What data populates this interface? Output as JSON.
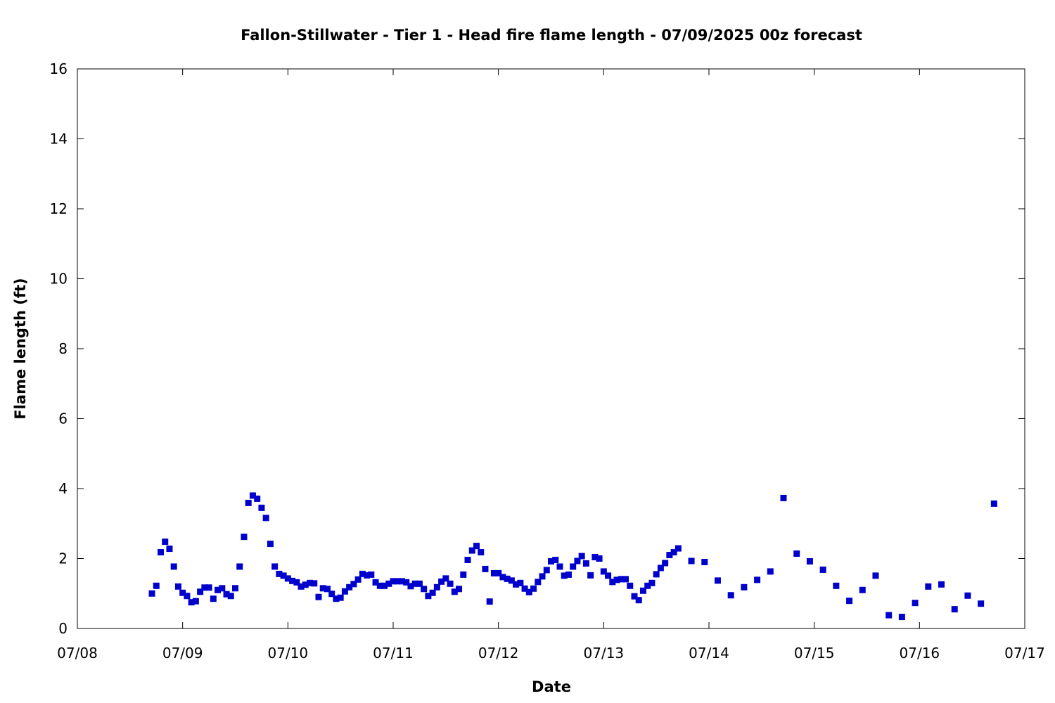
{
  "chart_data": {
    "type": "scatter",
    "title": "Fallon-Stillwater - Tier 1 - Head fire flame length - 07/09/2025 00z forecast",
    "xlabel": "Date",
    "ylabel": "Flame length (ft)",
    "x_type": "date",
    "x_range": [
      "2025-07-08T00:00",
      "2025-07-17T00:00"
    ],
    "ylim": [
      0,
      16
    ],
    "x_ticks": [
      {
        "label": "07/08",
        "value": "2025-07-08T00:00"
      },
      {
        "label": "07/09",
        "value": "2025-07-09T00:00"
      },
      {
        "label": "07/10",
        "value": "2025-07-10T00:00"
      },
      {
        "label": "07/11",
        "value": "2025-07-11T00:00"
      },
      {
        "label": "07/12",
        "value": "2025-07-12T00:00"
      },
      {
        "label": "07/13",
        "value": "2025-07-13T00:00"
      },
      {
        "label": "07/14",
        "value": "2025-07-14T00:00"
      },
      {
        "label": "07/15",
        "value": "2025-07-15T00:00"
      },
      {
        "label": "07/16",
        "value": "2025-07-16T00:00"
      },
      {
        "label": "07/17",
        "value": "2025-07-17T00:00"
      }
    ],
    "y_ticks": [
      0,
      2,
      4,
      6,
      8,
      10,
      12,
      14,
      16
    ],
    "grid": false,
    "legend": "none",
    "marker_color": "#0000cc",
    "marker": "square",
    "series": [
      {
        "x": [
          "2025-07-08T17:00",
          "2025-07-08T18:00",
          "2025-07-08T19:00",
          "2025-07-08T20:00",
          "2025-07-08T21:00",
          "2025-07-08T22:00",
          "2025-07-08T23:00",
          "2025-07-09T00:00",
          "2025-07-09T01:00",
          "2025-07-09T02:00",
          "2025-07-09T03:00",
          "2025-07-09T04:00",
          "2025-07-09T05:00",
          "2025-07-09T06:00",
          "2025-07-09T07:00",
          "2025-07-09T08:00",
          "2025-07-09T09:00",
          "2025-07-09T10:00",
          "2025-07-09T11:00",
          "2025-07-09T12:00",
          "2025-07-09T13:00",
          "2025-07-09T14:00",
          "2025-07-09T15:00",
          "2025-07-09T16:00",
          "2025-07-09T17:00",
          "2025-07-09T18:00",
          "2025-07-09T19:00",
          "2025-07-09T20:00",
          "2025-07-09T21:00",
          "2025-07-09T22:00",
          "2025-07-09T23:00",
          "2025-07-10T00:00",
          "2025-07-10T01:00",
          "2025-07-10T02:00",
          "2025-07-10T03:00",
          "2025-07-10T04:00",
          "2025-07-10T05:00",
          "2025-07-10T06:00",
          "2025-07-10T07:00",
          "2025-07-10T08:00",
          "2025-07-10T09:00",
          "2025-07-10T10:00",
          "2025-07-10T11:00",
          "2025-07-10T12:00",
          "2025-07-10T13:00",
          "2025-07-10T14:00",
          "2025-07-10T15:00",
          "2025-07-10T16:00",
          "2025-07-10T17:00",
          "2025-07-10T18:00",
          "2025-07-10T19:00",
          "2025-07-10T20:00",
          "2025-07-10T21:00",
          "2025-07-10T22:00",
          "2025-07-10T23:00",
          "2025-07-11T00:00",
          "2025-07-11T01:00",
          "2025-07-11T02:00",
          "2025-07-11T03:00",
          "2025-07-11T04:00",
          "2025-07-11T05:00",
          "2025-07-11T06:00",
          "2025-07-11T07:00",
          "2025-07-11T08:00",
          "2025-07-11T09:00",
          "2025-07-11T10:00",
          "2025-07-11T11:00",
          "2025-07-11T12:00",
          "2025-07-11T13:00",
          "2025-07-11T14:00",
          "2025-07-11T15:00",
          "2025-07-11T16:00",
          "2025-07-11T17:00",
          "2025-07-11T18:00",
          "2025-07-11T19:00",
          "2025-07-11T20:00",
          "2025-07-11T21:00",
          "2025-07-11T22:00",
          "2025-07-11T23:00",
          "2025-07-12T00:00",
          "2025-07-12T01:00",
          "2025-07-12T02:00",
          "2025-07-12T03:00",
          "2025-07-12T04:00",
          "2025-07-12T05:00",
          "2025-07-12T06:00",
          "2025-07-12T07:00",
          "2025-07-12T08:00",
          "2025-07-12T09:00",
          "2025-07-12T10:00",
          "2025-07-12T11:00",
          "2025-07-12T12:00",
          "2025-07-12T13:00",
          "2025-07-12T14:00",
          "2025-07-12T15:00",
          "2025-07-12T16:00",
          "2025-07-12T17:00",
          "2025-07-12T18:00",
          "2025-07-12T19:00",
          "2025-07-12T20:00",
          "2025-07-12T21:00",
          "2025-07-12T22:00",
          "2025-07-12T23:00",
          "2025-07-13T00:00",
          "2025-07-13T01:00",
          "2025-07-13T02:00",
          "2025-07-13T03:00",
          "2025-07-13T04:00",
          "2025-07-13T05:00",
          "2025-07-13T06:00",
          "2025-07-13T07:00",
          "2025-07-13T08:00",
          "2025-07-13T09:00",
          "2025-07-13T10:00",
          "2025-07-13T11:00",
          "2025-07-13T12:00",
          "2025-07-13T13:00",
          "2025-07-13T14:00",
          "2025-07-13T15:00",
          "2025-07-13T16:00",
          "2025-07-13T17:00",
          "2025-07-13T20:00",
          "2025-07-13T23:00",
          "2025-07-14T02:00",
          "2025-07-14T05:00",
          "2025-07-14T08:00",
          "2025-07-14T11:00",
          "2025-07-14T14:00",
          "2025-07-14T17:00",
          "2025-07-14T20:00",
          "2025-07-14T23:00",
          "2025-07-15T02:00",
          "2025-07-15T05:00",
          "2025-07-15T08:00",
          "2025-07-15T11:00",
          "2025-07-15T14:00",
          "2025-07-15T17:00",
          "2025-07-15T20:00",
          "2025-07-15T23:00",
          "2025-07-16T02:00",
          "2025-07-16T05:00",
          "2025-07-16T08:00",
          "2025-07-16T11:00",
          "2025-07-16T14:00",
          "2025-07-16T17:00"
        ],
        "y": [
          1.0,
          1.22,
          2.18,
          2.48,
          2.28,
          1.77,
          1.2,
          1.02,
          0.93,
          0.75,
          0.78,
          1.05,
          1.17,
          1.17,
          0.85,
          1.1,
          1.15,
          0.98,
          0.93,
          1.15,
          1.77,
          2.62,
          3.59,
          3.8,
          3.71,
          3.45,
          3.16,
          2.42,
          1.77,
          1.56,
          1.51,
          1.43,
          1.36,
          1.32,
          1.2,
          1.25,
          1.3,
          1.29,
          0.9,
          1.15,
          1.13,
          0.99,
          0.85,
          0.88,
          1.06,
          1.18,
          1.27,
          1.4,
          1.56,
          1.52,
          1.54,
          1.32,
          1.22,
          1.22,
          1.28,
          1.35,
          1.35,
          1.35,
          1.32,
          1.21,
          1.28,
          1.28,
          1.13,
          0.93,
          1.02,
          1.18,
          1.34,
          1.43,
          1.28,
          1.05,
          1.13,
          1.54,
          1.96,
          2.23,
          2.36,
          2.18,
          1.7,
          0.77,
          1.58,
          1.58,
          1.47,
          1.42,
          1.37,
          1.26,
          1.3,
          1.14,
          1.04,
          1.14,
          1.33,
          1.49,
          1.67,
          1.92,
          1.96,
          1.77,
          1.51,
          1.54,
          1.77,
          1.93,
          2.07,
          1.86,
          1.52,
          2.04,
          2.0,
          1.63,
          1.51,
          1.33,
          1.39,
          1.41,
          1.41,
          1.22,
          0.92,
          0.81,
          1.08,
          1.22,
          1.3,
          1.55,
          1.73,
          1.87,
          2.1,
          2.18,
          2.29,
          1.93,
          1.9,
          1.37,
          0.95,
          1.18,
          1.39,
          1.63,
          3.73,
          2.14,
          1.92,
          1.68,
          1.22,
          0.79,
          1.1,
          1.51,
          0.38,
          0.33,
          0.73,
          1.2,
          1.26,
          0.55,
          0.94,
          0.71,
          3.57
        ]
      }
    ]
  }
}
